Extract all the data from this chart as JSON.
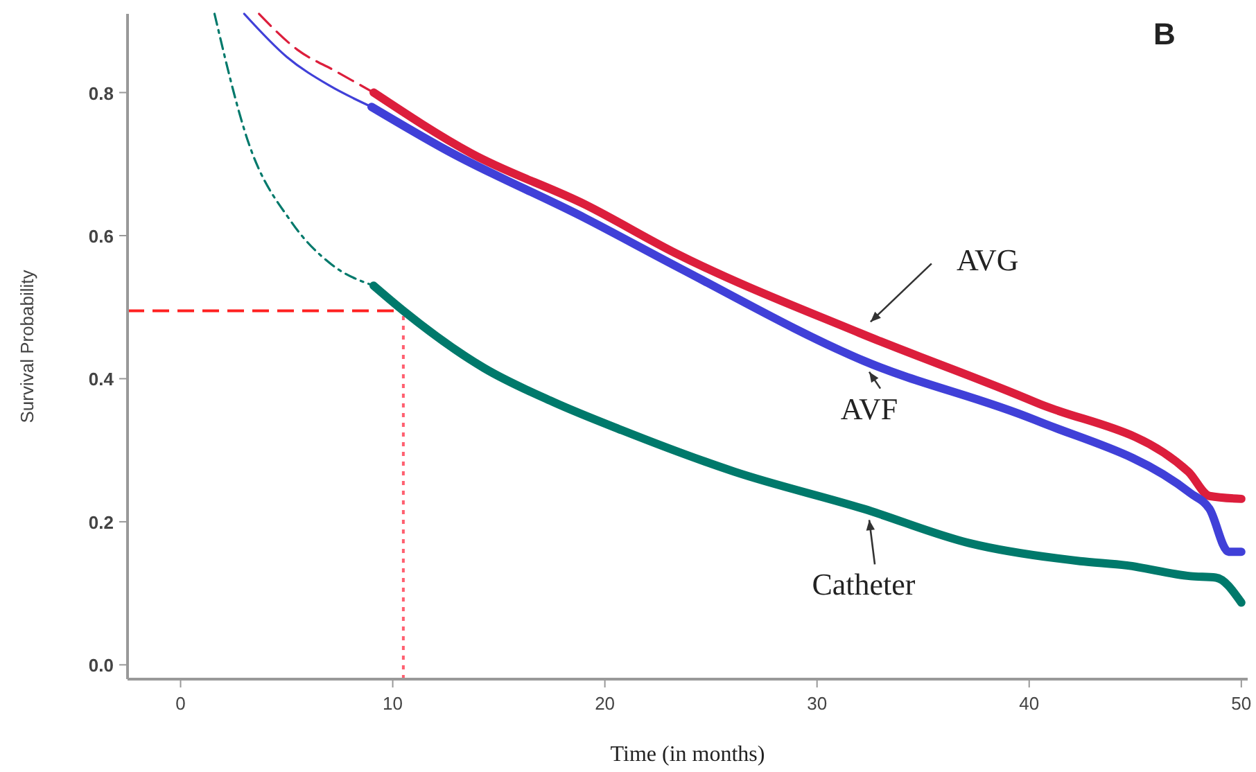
{
  "chart_data": {
    "type": "line",
    "xlabel": "Time (in months)",
    "ylabel": "Survival Probability",
    "xlim": [
      -2.5,
      50.3
    ],
    "ylim": [
      -0.02,
      0.91
    ],
    "xticks": [
      0,
      10,
      20,
      30,
      40,
      50
    ],
    "yticks": [
      {
        "value": 0,
        "label": "0.0"
      },
      {
        "value": 0.2,
        "label": "0.2"
      },
      {
        "value": 0.4,
        "label": "0.4"
      },
      {
        "value": 0.6,
        "label": "0.6"
      },
      {
        "value": 0.8,
        "label": "0.8"
      }
    ],
    "grid": false,
    "marker": "none",
    "series": [
      {
        "color": "#dc1e3c",
        "line_style": "dashed",
        "x": [
          3.7,
          5.5,
          7.3,
          9.1
        ],
        "values": [
          0.91,
          0.86,
          0.83,
          0.8
        ]
      },
      {
        "color": "#4040d8",
        "line_style": "solid",
        "x": [
          3.0,
          5.0,
          7.0,
          9.0
        ],
        "values": [
          0.91,
          0.85,
          0.81,
          0.78
        ]
      },
      {
        "color": "#00796b",
        "line_style": "dashdot",
        "x": [
          1.6,
          3.2,
          5.2,
          7.1,
          9.1
        ],
        "values": [
          0.91,
          0.73,
          0.62,
          0.56,
          0.53
        ]
      },
      {
        "name": "AVG",
        "color": "#dc1e3c",
        "x": [
          9.1,
          13.7,
          19.1,
          23.3,
          32,
          40.3,
          47.5,
          48.5,
          50
        ],
        "values": [
          0.8,
          0.715,
          0.643,
          0.576,
          0.464,
          0.367,
          0.27,
          0.236,
          0.232
        ]
      },
      {
        "name": "AVF",
        "color": "#4040d8",
        "x": [
          9.0,
          12.5,
          19.1,
          23.5,
          32.2,
          40.3,
          47.6,
          48.5,
          49.4,
          50
        ],
        "values": [
          0.78,
          0.72,
          0.624,
          0.555,
          0.425,
          0.342,
          0.24,
          0.218,
          0.158,
          0.158
        ]
      },
      {
        "name": "Catheter",
        "color": "#00796b",
        "x": [
          9.1,
          10.5,
          14.3,
          17.6,
          20.8,
          26.1,
          32.2,
          37.2,
          42.4,
          44.6,
          47.6,
          48.8,
          50
        ],
        "values": [
          0.53,
          0.495,
          0.415,
          0.367,
          0.328,
          0.27,
          0.218,
          0.17,
          0.145,
          0.139,
          0.124,
          0.122,
          0.087
        ]
      }
    ],
    "ref_lines": [
      {
        "axis": "y",
        "value": 0.495,
        "color": "#ff2020",
        "line_style": "dashed"
      },
      {
        "axis": "x",
        "value": 10.5,
        "color": "#ff6070",
        "line_style": "dotted"
      }
    ],
    "annotations": [
      "B"
    ]
  }
}
